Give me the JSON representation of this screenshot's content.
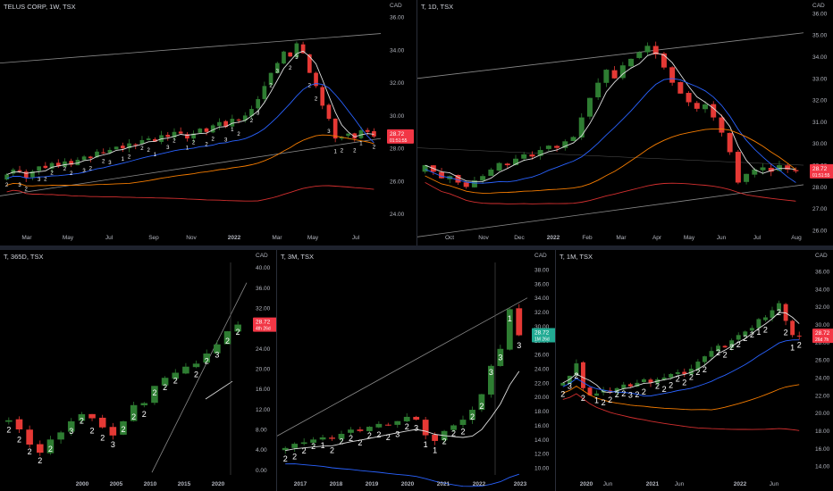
{
  "colors": {
    "up": "#26a69a",
    "up_candle": "#2e7d32",
    "down": "#ef5350",
    "down_candle": "#e53935",
    "sma_white": "#e0e0e0",
    "sma_blue": "#2962ff",
    "sma_orange": "#f57c00",
    "sma_red": "#d32f2f",
    "channel": "#8a8a8a",
    "axis_text": "#b2b5be",
    "price_tag": "#f23645",
    "price_tag_green": "#22ab94",
    "background": "#000000"
  },
  "charts": [
    {
      "id": "weekly",
      "title": "TELUS CORP, 1W, TSX",
      "currency": "CAD",
      "y_ticks": [
        "36.00",
        "34.00",
        "32.00",
        "30.00",
        "28.00",
        "26.00",
        "24.00"
      ],
      "y_values": [
        36,
        34,
        32,
        30,
        28,
        26,
        24
      ],
      "x_ticks": [
        "Mar",
        "May",
        "Jul",
        "Sep",
        "Nov",
        "2022",
        "Mar",
        "May",
        "Jul"
      ],
      "price_tag": "28.72",
      "price_tag_sub": "01:51:55",
      "tag_color": "red",
      "labels_count_text": [
        "2",
        "3",
        "2",
        "3",
        "2",
        "2",
        "2",
        "2",
        "3",
        "2",
        "2",
        "3",
        "1",
        "2",
        "2",
        "2",
        "1",
        "3",
        "2",
        "1",
        "2",
        "2",
        "2",
        "3",
        "1",
        "2",
        "2",
        "3",
        "2",
        "3",
        "2",
        "3",
        "2",
        "2",
        "3",
        "1",
        "2",
        "2",
        "1",
        "2"
      ]
    },
    {
      "id": "daily",
      "title": "T, 1D, TSX",
      "currency": "CAD",
      "y_ticks": [
        "36.00",
        "35.00",
        "34.00",
        "33.00",
        "32.00",
        "31.00",
        "30.00",
        "29.00",
        "28.00",
        "27.00",
        "26.00"
      ],
      "y_values": [
        36,
        35,
        34,
        33,
        32,
        31,
        30,
        29,
        28,
        27,
        26
      ],
      "x_ticks": [
        "Oct",
        "Nov",
        "Dec",
        "2022",
        "Feb",
        "Mar",
        "Apr",
        "May",
        "Jun",
        "Jul",
        "Aug"
      ],
      "price_tag": "28.72",
      "price_tag_sub": "01:51:55",
      "tag_color": "red"
    },
    {
      "id": "yearly",
      "title": "T, 365D, TSX",
      "currency": "CAD",
      "y_ticks": [
        "40.00",
        "36.00",
        "32.00",
        "28.00",
        "24.00",
        "20.00",
        "16.00",
        "12.00",
        "8.00",
        "4.00",
        "0.00"
      ],
      "y_values": [
        40,
        36,
        32,
        28,
        24,
        20,
        16,
        12,
        8,
        4,
        0
      ],
      "x_ticks": [
        "2000",
        "2005",
        "2010",
        "2015",
        "2020"
      ],
      "price_tag": "28.72",
      "price_tag_sub": "4th 26d",
      "tag_color": "red",
      "labels_count_text": [
        "2",
        "2",
        "2",
        "2",
        "2",
        "3",
        "2",
        "2",
        "2",
        "3",
        "2",
        "2",
        "2",
        "2",
        "2",
        "2",
        "2",
        "2",
        "3",
        "2",
        "2"
      ]
    },
    {
      "id": "3month",
      "title": "T, 3M, TSX",
      "currency": "CAD",
      "y_ticks": [
        "38.00",
        "36.00",
        "34.00",
        "32.00",
        "30.00",
        "28.00",
        "26.00",
        "24.00",
        "22.00",
        "20.00",
        "18.00",
        "16.00",
        "14.00",
        "12.00",
        "10.00"
      ],
      "y_values": [
        38,
        36,
        34,
        32,
        30,
        28,
        26,
        24,
        22,
        20,
        18,
        16,
        14,
        12,
        10
      ],
      "x_ticks": [
        "2017",
        "2018",
        "2019",
        "2020",
        "2021",
        "2022",
        "2023"
      ],
      "price_tag": "28.72",
      "price_tag_sub": "1M 26d",
      "tag_color": "green",
      "labels_count_text": [
        "2",
        "2",
        "2",
        "2",
        "1",
        "2",
        "2",
        "2",
        "2",
        "2",
        "2",
        "2",
        "3",
        "2",
        "3",
        "1",
        "1",
        "2",
        "2",
        "2",
        "2",
        "2",
        "3",
        "3",
        "1",
        "3"
      ]
    },
    {
      "id": "monthly",
      "title": "T, 1M, TSX",
      "currency": "CAD",
      "y_ticks": [
        "36.00",
        "34.00",
        "32.00",
        "30.00",
        "28.00",
        "26.00",
        "24.00",
        "22.00",
        "20.00",
        "18.00",
        "16.00",
        "14.00"
      ],
      "y_values": [
        36,
        34,
        32,
        30,
        28,
        26,
        24,
        22,
        20,
        18,
        16,
        14
      ],
      "x_ticks": [
        "2020",
        "Jun",
        "2021",
        "Jun",
        "2022",
        "Jun"
      ],
      "price_tag": "28.72",
      "price_tag_sub": "26d 7h",
      "tag_color": "red",
      "labels_count_text": [
        "2",
        "3",
        "2",
        "2",
        "1",
        "2",
        "2",
        "2",
        "2",
        "3",
        "2",
        "2",
        "2",
        "2",
        "2",
        "2",
        "2",
        "2",
        "2",
        "2",
        "2",
        "2",
        "2",
        "2",
        "2",
        "2",
        "1",
        "2",
        "2",
        "2",
        "1",
        "2"
      ]
    }
  ],
  "chart_data": [
    {
      "type": "candlestick",
      "title": "TELUS CORP, 1W, TSX",
      "ylabel": "CAD",
      "ylim": [
        23,
        36.5
      ],
      "x_ticks": [
        "Mar",
        "May",
        "Jul",
        "Sep",
        "Nov",
        "2022",
        "Mar",
        "May",
        "Jul"
      ],
      "close": [
        26.4,
        26.7,
        26.6,
        26.2,
        26.6,
        26.9,
        26.8,
        27.1,
        26.9,
        27.2,
        27.0,
        27.3,
        27.5,
        27.4,
        27.8,
        27.7,
        27.9,
        28.1,
        28.0,
        28.3,
        28.2,
        28.5,
        28.6,
        28.4,
        28.8,
        28.7,
        29.0,
        28.9,
        28.6,
        28.9,
        29.2,
        29.0,
        29.4,
        29.6,
        29.3,
        29.8,
        29.7,
        30.0,
        30.4,
        31.0,
        31.8,
        32.6,
        33.2,
        33.9,
        33.6,
        34.4,
        33.8,
        32.6,
        31.8,
        30.6,
        29.8,
        28.6,
        28.7,
        28.9,
        28.6,
        29.1,
        29.0,
        28.72
      ],
      "overlays": [
        "SMA white",
        "SMA blue",
        "SMA orange",
        "SMA red",
        "channel lines"
      ],
      "last_price": 28.72
    },
    {
      "type": "candlestick",
      "title": "T, 1D, TSX",
      "ylabel": "CAD",
      "ylim": [
        26,
        36.2
      ],
      "x_ticks": [
        "Oct",
        "Nov",
        "Dec",
        "2022",
        "Feb",
        "Mar",
        "Apr",
        "May",
        "Jun",
        "Jul",
        "Aug"
      ],
      "close": [
        29.0,
        28.7,
        28.4,
        28.5,
        28.2,
        28.0,
        28.3,
        28.5,
        28.8,
        29.1,
        29.0,
        29.3,
        29.5,
        29.4,
        29.7,
        29.9,
        29.8,
        30.1,
        30.3,
        31.2,
        32.1,
        32.8,
        33.4,
        33.0,
        33.6,
        33.9,
        34.2,
        34.5,
        34.1,
        33.5,
        32.8,
        32.3,
        31.9,
        31.6,
        31.8,
        31.2,
        30.5,
        29.6,
        28.2,
        28.6,
        28.8,
        28.9,
        28.7,
        29.0,
        28.8,
        28.72
      ],
      "overlays": [
        "SMA white",
        "SMA blue",
        "SMA orange",
        "SMA red",
        "channel lines"
      ],
      "last_price": 28.72
    },
    {
      "type": "candlestick",
      "title": "T, 365D, TSX",
      "ylabel": "CAD",
      "ylim": [
        -1,
        41
      ],
      "x_ticks": [
        "2000",
        "2005",
        "2010",
        "2015",
        "2020"
      ],
      "close": [
        9.8,
        8.0,
        5.0,
        3.4,
        6.0,
        7.4,
        9.6,
        11.0,
        10.2,
        8.4,
        6.8,
        9.6,
        12.8,
        13.2,
        16.6,
        18.2,
        19.2,
        20.4,
        21.0,
        23.0,
        24.8,
        27.4,
        28.72
      ],
      "overlays": [
        "trend lines"
      ],
      "last_price": 28.72
    },
    {
      "type": "candlestick",
      "title": "T, 3M, TSX",
      "ylabel": "CAD",
      "ylim": [
        9,
        39
      ],
      "x_ticks": [
        "2017",
        "2018",
        "2019",
        "2020",
        "2021",
        "2022",
        "2023"
      ],
      "close": [
        12.8,
        13.4,
        13.6,
        14.0,
        14.3,
        14.1,
        14.8,
        15.4,
        15.2,
        15.8,
        16.2,
        16.0,
        16.6,
        17.2,
        16.8,
        14.6,
        13.8,
        15.2,
        16.0,
        16.8,
        18.2,
        20.4,
        24.4,
        26.8,
        32.4,
        28.72
      ],
      "overlays": [
        "SMA white",
        "SMA blue"
      ],
      "last_price": 28.72
    },
    {
      "type": "candlestick",
      "title": "T, 1M, TSX",
      "ylabel": "CAD",
      "ylim": [
        13,
        37
      ],
      "x_ticks": [
        "2020",
        "Jun",
        "2021",
        "Jun",
        "2022",
        "Jun"
      ],
      "close": [
        23.4,
        24.2,
        25.6,
        22.8,
        22.0,
        22.2,
        22.6,
        22.4,
        22.8,
        23.2,
        23.0,
        23.4,
        23.8,
        23.4,
        23.8,
        24.0,
        24.4,
        24.6,
        24.4,
        25.0,
        25.8,
        26.4,
        27.0,
        27.6,
        27.4,
        28.2,
        28.8,
        29.2,
        29.6,
        30.6,
        30.8,
        31.6,
        32.4,
        30.4,
        28.8,
        28.72
      ],
      "overlays": [
        "SMA white",
        "SMA blue",
        "SMA orange",
        "SMA red"
      ],
      "last_price": 28.72
    }
  ]
}
